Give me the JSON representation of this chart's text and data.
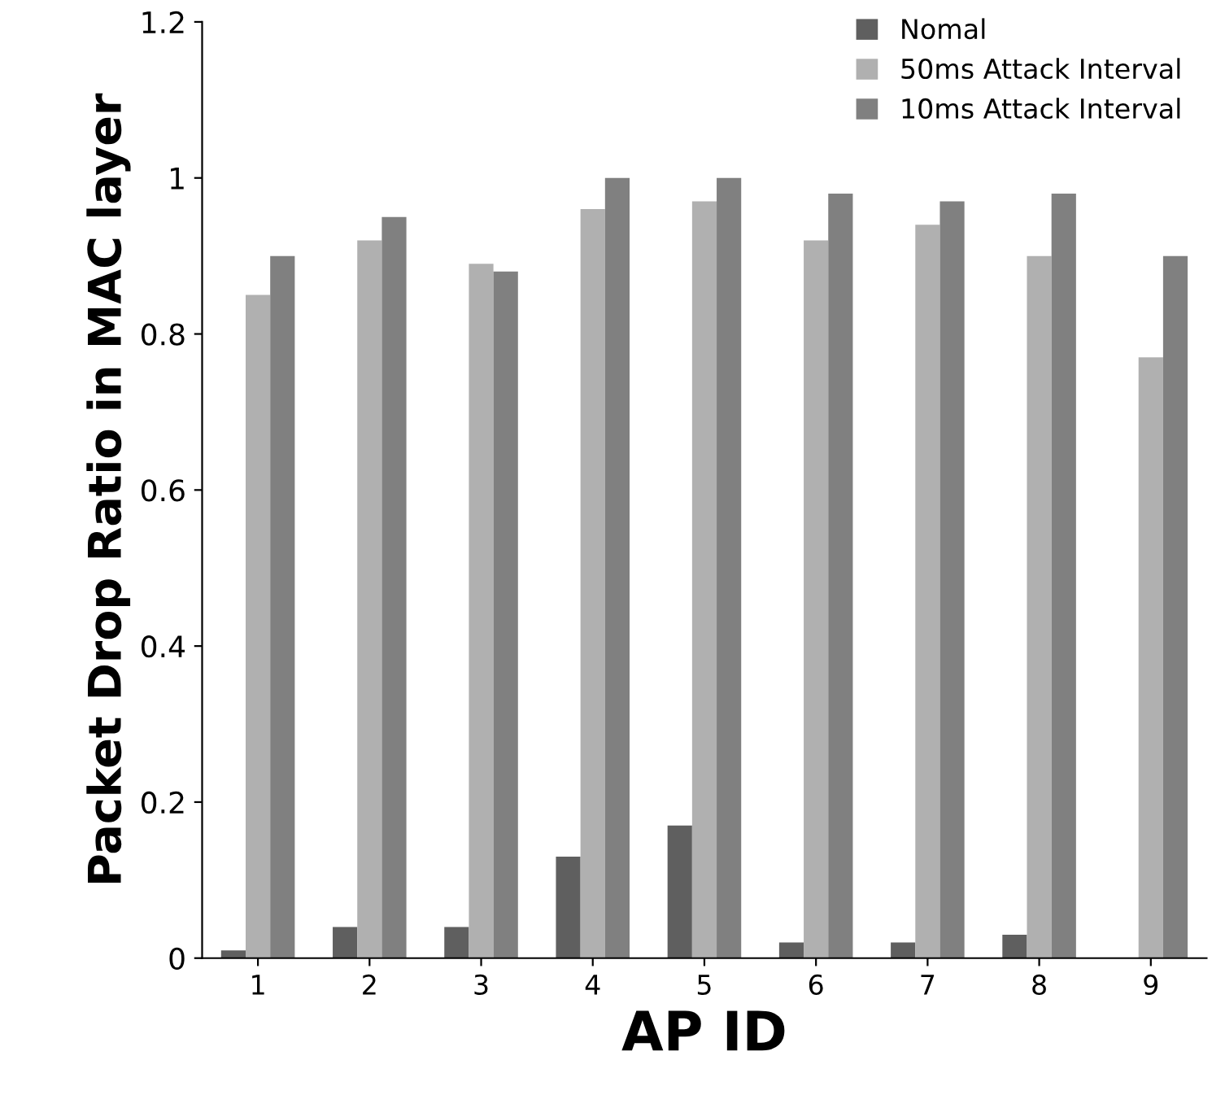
{
  "chart_data": {
    "type": "bar",
    "xlabel": "AP ID",
    "ylabel": "Packet Drop Ratio in MAC layer",
    "categories": [
      "1",
      "2",
      "3",
      "4",
      "5",
      "6",
      "7",
      "8",
      "9"
    ],
    "series": [
      {
        "name": "Nomal",
        "color": "#5f5f5f",
        "values": [
          0.01,
          0.04,
          0.04,
          0.13,
          0.17,
          0.02,
          0.02,
          0.03,
          0
        ]
      },
      {
        "name": "50ms Attack Interval",
        "color": "#b0b0b0",
        "values": [
          0.85,
          0.92,
          0.89,
          0.96,
          0.97,
          0.92,
          0.94,
          0.9,
          0.77
        ]
      },
      {
        "name": "10ms Attack Interval",
        "color": "#808080",
        "values": [
          0.9,
          0.95,
          0.88,
          1.0,
          1.0,
          0.98,
          0.97,
          0.98,
          0.9
        ]
      }
    ],
    "ylim": [
      0,
      1.2
    ],
    "yticks": [
      0,
      0.2,
      0.4,
      0.6,
      0.8,
      1,
      1.2
    ],
    "grid": false,
    "legend": "top right"
  }
}
